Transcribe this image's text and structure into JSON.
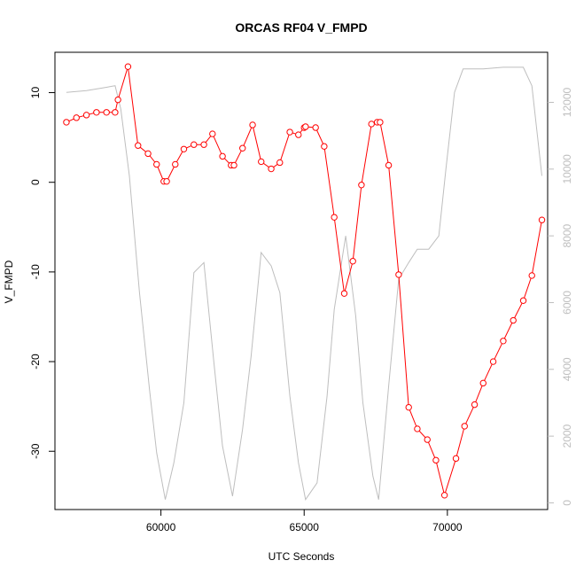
{
  "chart_data": {
    "type": "line",
    "title": "ORCAS RF04 V_FMPD",
    "xlabel": "UTC Seconds",
    "ylabel": "V_FMPD",
    "xlim": [
      56300,
      73500
    ],
    "ylim": [
      -36.5,
      14.5
    ],
    "y2lim": [
      -200,
      13500
    ],
    "x_ticks": [
      60000,
      65000,
      70000
    ],
    "y_ticks": [
      10,
      0,
      -10,
      -20,
      -30
    ],
    "y2_ticks": [
      0,
      2000,
      4000,
      6000,
      8000,
      10000,
      12000
    ],
    "grid": false,
    "series": [
      {
        "axis": "left",
        "color": "#ff0000",
        "style": "line+points",
        "points": [
          [
            56700,
            6.7
          ],
          [
            57050,
            7.2
          ],
          [
            57400,
            7.5
          ],
          [
            57750,
            7.8
          ],
          [
            58100,
            7.8
          ],
          [
            58400,
            7.8
          ],
          [
            58500,
            9.2
          ],
          [
            58850,
            12.9
          ],
          [
            59200,
            4.1
          ],
          [
            59550,
            3.2
          ],
          [
            59850,
            2.0
          ],
          [
            60100,
            0.1
          ],
          [
            60200,
            0.1
          ],
          [
            60500,
            2.0
          ],
          [
            60800,
            3.7
          ],
          [
            61150,
            4.2
          ],
          [
            61500,
            4.2
          ],
          [
            61800,
            5.4
          ],
          [
            62150,
            2.9
          ],
          [
            62450,
            1.9
          ],
          [
            62550,
            1.9
          ],
          [
            62850,
            3.8
          ],
          [
            63200,
            6.4
          ],
          [
            63500,
            2.3
          ],
          [
            63850,
            1.5
          ],
          [
            64150,
            2.2
          ],
          [
            64500,
            5.6
          ],
          [
            64800,
            5.3
          ],
          [
            65000,
            6.1
          ],
          [
            65050,
            6.2
          ],
          [
            65400,
            6.1
          ],
          [
            65700,
            4.0
          ],
          [
            66050,
            -3.9
          ],
          [
            66400,
            -12.4
          ],
          [
            66700,
            -8.8
          ],
          [
            67000,
            -0.3
          ],
          [
            67350,
            6.5
          ],
          [
            67550,
            6.7
          ],
          [
            67650,
            6.7
          ],
          [
            67950,
            1.9
          ],
          [
            68300,
            -10.3
          ],
          [
            68650,
            -25.1
          ],
          [
            68950,
            -27.5
          ],
          [
            69300,
            -28.7
          ],
          [
            69600,
            -31.0
          ],
          [
            69900,
            -34.9
          ],
          [
            70300,
            -30.8
          ],
          [
            70600,
            -27.2
          ],
          [
            70950,
            -24.8
          ],
          [
            71250,
            -22.4
          ],
          [
            71600,
            -20.0
          ],
          [
            71950,
            -17.7
          ],
          [
            72300,
            -15.4
          ],
          [
            72650,
            -13.2
          ],
          [
            72950,
            -10.4
          ],
          [
            73300,
            -4.2
          ]
        ]
      },
      {
        "axis": "right",
        "color": "#bebebe",
        "style": "line",
        "points": [
          [
            56700,
            12300
          ],
          [
            57400,
            12350
          ],
          [
            58100,
            12450
          ],
          [
            58400,
            12500
          ],
          [
            58600,
            11800
          ],
          [
            58900,
            9800
          ],
          [
            59250,
            6300
          ],
          [
            59600,
            3400
          ],
          [
            59850,
            1500
          ],
          [
            60150,
            100
          ],
          [
            60450,
            1200
          ],
          [
            60800,
            3000
          ],
          [
            61150,
            6900
          ],
          [
            61500,
            7200
          ],
          [
            61850,
            4200
          ],
          [
            62150,
            1700
          ],
          [
            62500,
            200
          ],
          [
            62850,
            2200
          ],
          [
            63150,
            4400
          ],
          [
            63500,
            7500
          ],
          [
            63850,
            7100
          ],
          [
            64150,
            6300
          ],
          [
            64500,
            3200
          ],
          [
            64800,
            1200
          ],
          [
            65050,
            100
          ],
          [
            65450,
            600
          ],
          [
            65800,
            3200
          ],
          [
            66050,
            5800
          ],
          [
            66450,
            8000
          ],
          [
            66800,
            5600
          ],
          [
            67050,
            3000
          ],
          [
            67400,
            800
          ],
          [
            67600,
            100
          ],
          [
            67950,
            3500
          ],
          [
            68300,
            6700
          ],
          [
            68650,
            7200
          ],
          [
            68950,
            7600
          ],
          [
            69350,
            7600
          ],
          [
            69700,
            8000
          ],
          [
            69950,
            10000
          ],
          [
            70250,
            12300
          ],
          [
            70550,
            13000
          ],
          [
            71250,
            13000
          ],
          [
            71950,
            13050
          ],
          [
            72650,
            13050
          ],
          [
            72950,
            12500
          ],
          [
            73300,
            9800
          ]
        ]
      }
    ]
  }
}
